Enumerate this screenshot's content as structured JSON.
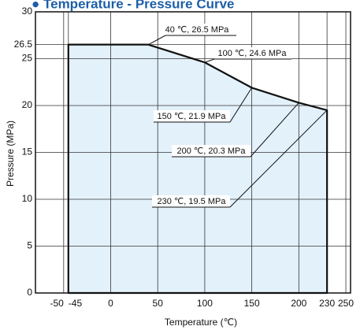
{
  "chart_data": {
    "type": "area",
    "title": "● Temperature - Pressure Curve",
    "x_label": "Temperature (℃)",
    "y_label": "Pressure (MPa)",
    "x": [
      -45,
      40,
      100,
      150,
      200,
      230
    ],
    "values": [
      26.5,
      26.5,
      24.6,
      21.9,
      20.3,
      19.5
    ],
    "color": "#111111",
    "fill": "#e3f1fb",
    "xlim": [
      -80,
      255
    ],
    "ylim": [
      0,
      30
    ],
    "xticks": [
      -50,
      -45,
      0,
      50,
      100,
      150,
      200,
      230,
      250
    ],
    "yticks": [
      0,
      5,
      10,
      15,
      20,
      25,
      26.5,
      30
    ],
    "grid": true,
    "annotations": [
      "40 ℃, 26.5 MPa",
      "100 ℃, 24.6 MPa",
      "150 ℃, 21.9 MPa",
      "200 ℃, 20.3 MPa",
      "230 ℃, 19.5 MPa"
    ]
  }
}
